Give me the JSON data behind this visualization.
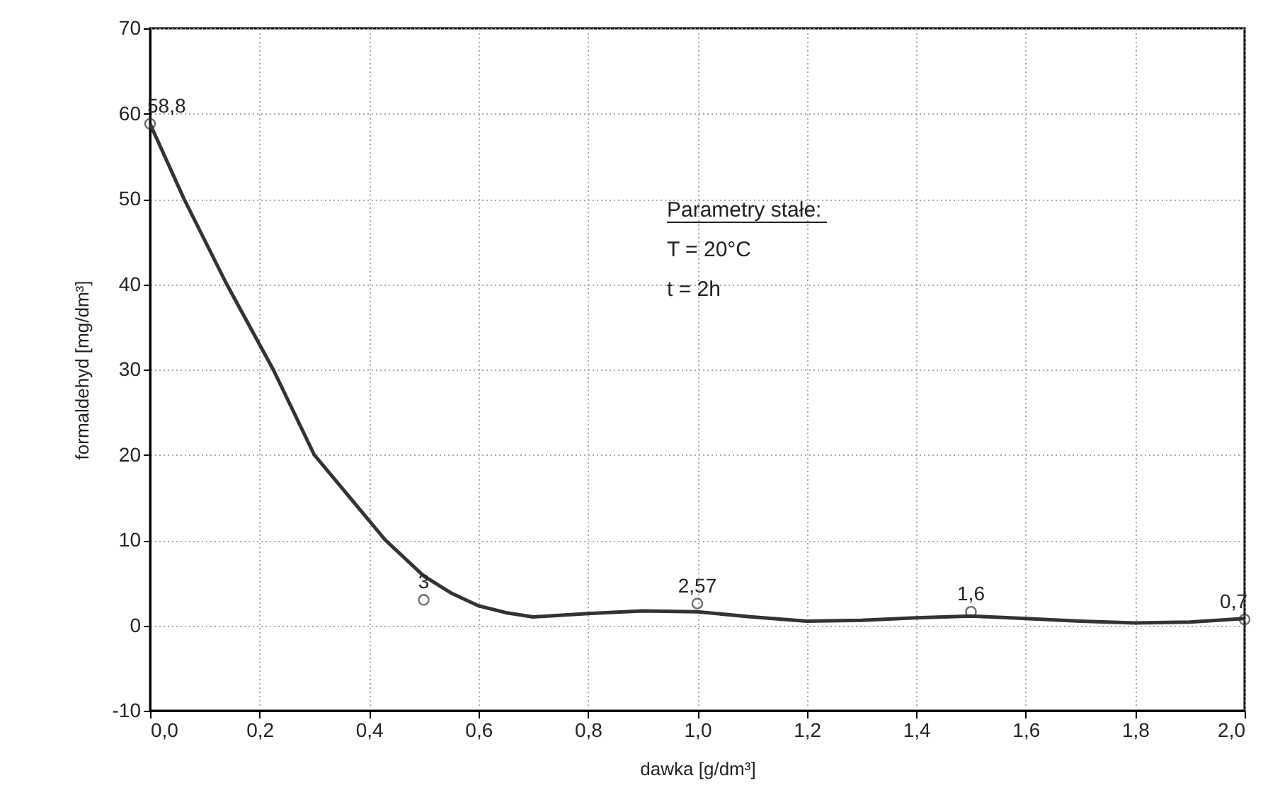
{
  "chart_data": {
    "type": "scatter",
    "xlabel": "dawka [g/dm³]",
    "ylabel": "formaldehyd [mg/dm³]",
    "annotations": [
      "Parametry stałe:",
      "T = 20°C",
      "t = 2h"
    ],
    "xlim": [
      0,
      2
    ],
    "ylim": [
      -10,
      70
    ],
    "xticks": [
      {
        "value": 0,
        "label": "0,0"
      },
      {
        "value": 0.2,
        "label": "0,2"
      },
      {
        "value": 0.4,
        "label": "0,4"
      },
      {
        "value": 0.6,
        "label": "0,6"
      },
      {
        "value": 0.8,
        "label": "0,8"
      },
      {
        "value": 1,
        "label": "1,0"
      },
      {
        "value": 1.2,
        "label": "1,2"
      },
      {
        "value": 1.4,
        "label": "1,4"
      },
      {
        "value": 1.6,
        "label": "1,6"
      },
      {
        "value": 1.8,
        "label": "1,8"
      },
      {
        "value": 2,
        "label": "2,0"
      }
    ],
    "yticks": [
      -10,
      0,
      10,
      20,
      30,
      40,
      50,
      60,
      70
    ],
    "grid": true,
    "marker": "circle",
    "series": [
      {
        "type": "line",
        "marker": "none",
        "color": "#333333",
        "x": [
          0,
          0.062,
          0.14,
          0.225,
          0.3,
          0.43,
          0.5,
          0.55,
          0.6,
          0.65,
          0.7,
          0.8,
          0.9,
          1.0,
          1.1,
          1.2,
          1.3,
          1.4,
          1.5,
          1.6,
          1.7,
          1.8,
          1.9,
          2.0
        ],
        "values": [
          58.8,
          50,
          40,
          30,
          20,
          10,
          5.8,
          3.8,
          2.3,
          1.5,
          1.0,
          1.4,
          1.7,
          1.6,
          1.0,
          0.5,
          0.6,
          0.9,
          1.1,
          0.8,
          0.5,
          0.3,
          0.4,
          0.8
        ]
      },
      {
        "color": "#333333",
        "x": [
          0,
          0.5,
          1,
          1.5,
          2
        ],
        "values": [
          58.8,
          3,
          2.57,
          1.6,
          0.7
        ],
        "value_labels": [
          "58,8",
          "3",
          "2,57",
          "1,6",
          "0,7"
        ]
      }
    ]
  }
}
